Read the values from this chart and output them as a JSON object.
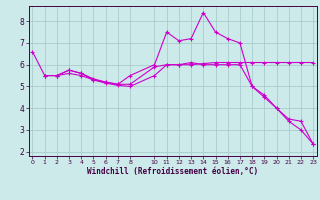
{
  "xlabel": "Windchill (Refroidissement éolien,°C)",
  "bg_color": "#cceaea",
  "grid_color": "#aacccc",
  "line_color": "#cc00cc",
  "x_ticks": [
    0,
    1,
    2,
    3,
    4,
    5,
    6,
    7,
    8,
    10,
    11,
    12,
    13,
    14,
    15,
    16,
    17,
    18,
    19,
    20,
    21,
    22,
    23
  ],
  "ylim": [
    1.8,
    8.7
  ],
  "xlim": [
    -0.3,
    23.3
  ],
  "series": [
    {
      "x": [
        0,
        1,
        2,
        3,
        4,
        5,
        6,
        7,
        8,
        10,
        11,
        12,
        13,
        14,
        15,
        16,
        17,
        18,
        19,
        20,
        21,
        22,
        23
      ],
      "y": [
        6.6,
        5.5,
        5.5,
        5.75,
        5.6,
        5.35,
        5.2,
        5.1,
        5.1,
        5.9,
        6.0,
        6.0,
        6.0,
        6.05,
        6.1,
        6.1,
        6.1,
        6.1,
        6.1,
        6.1,
        6.1,
        6.1,
        6.1
      ]
    },
    {
      "x": [
        1,
        2,
        3,
        4,
        5,
        6,
        7,
        8,
        10,
        11,
        12,
        13,
        14,
        15,
        16,
        17,
        18,
        19,
        20,
        21,
        22,
        23
      ],
      "y": [
        5.5,
        5.5,
        5.75,
        5.6,
        5.3,
        5.2,
        5.1,
        5.5,
        6.0,
        7.5,
        7.1,
        7.2,
        8.4,
        7.5,
        7.2,
        7.0,
        5.0,
        4.6,
        4.0,
        3.5,
        3.4,
        2.35
      ]
    },
    {
      "x": [
        1,
        2,
        3,
        4,
        5,
        6,
        7,
        8,
        10,
        11,
        12,
        13,
        14,
        15,
        16,
        17,
        18,
        19,
        20,
        21,
        22,
        23
      ],
      "y": [
        5.5,
        5.5,
        5.6,
        5.5,
        5.3,
        5.15,
        5.05,
        5.0,
        5.5,
        6.0,
        6.0,
        6.1,
        6.0,
        6.0,
        6.0,
        6.0,
        5.0,
        4.5,
        4.0,
        3.4,
        3.0,
        2.35
      ]
    }
  ]
}
